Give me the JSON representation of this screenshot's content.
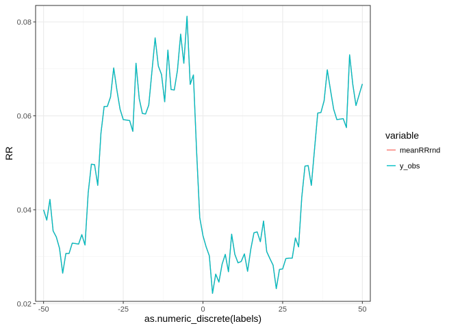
{
  "chart_data": {
    "type": "line",
    "xlabel": "as.numeric_discrete(labels)",
    "ylabel": "RR",
    "xlim": [
      -52.5,
      52.5
    ],
    "ylim": [
      0.0205,
      0.0835
    ],
    "x_ticks": [
      -50,
      -25,
      0,
      25,
      50
    ],
    "x_tick_labels": [
      "-50",
      "-25",
      "0",
      "25",
      "50"
    ],
    "y_ticks": [
      0.02,
      0.04,
      0.06,
      0.08
    ],
    "y_tick_labels": [
      "0.02",
      "0.04",
      "0.06",
      "0.08"
    ],
    "grid": true,
    "legend": {
      "title": "variable",
      "position": "right",
      "entries": [
        {
          "label": "meanRRrnd",
          "color": "#F8766D"
        },
        {
          "label": "y_obs",
          "color": "#00BFC4"
        }
      ]
    },
    "x": [
      -50,
      -49,
      -48,
      -47,
      -46,
      -45,
      -44,
      -43,
      -42,
      -41,
      -40,
      -39,
      -38,
      -37,
      -36,
      -35,
      -34,
      -33,
      -32,
      -31,
      -30,
      -29,
      -28,
      -27,
      -26,
      -25,
      -24,
      -23,
      -22,
      -21,
      -20,
      -19,
      -18,
      -17,
      -16,
      -15,
      -14,
      -13,
      -12,
      -11,
      -10,
      -9,
      -8,
      -7,
      -6,
      -5,
      -4,
      -3,
      -2,
      -1,
      0,
      1,
      2,
      3,
      4,
      5,
      6,
      7,
      8,
      9,
      10,
      11,
      12,
      13,
      14,
      15,
      16,
      17,
      18,
      19,
      20,
      21,
      22,
      23,
      24,
      25,
      26,
      27,
      28,
      29,
      30,
      31,
      32,
      33,
      34,
      35,
      36,
      37,
      38,
      39,
      40,
      41,
      42,
      43,
      44,
      45,
      46,
      47,
      48,
      49,
      50
    ],
    "series": [
      {
        "name": "y_obs",
        "color": "#00BFC4",
        "values": [
          0.04,
          0.0378,
          0.0422,
          0.0355,
          0.0342,
          0.0318,
          0.0265,
          0.0307,
          0.0307,
          0.0329,
          0.0328,
          0.0327,
          0.0347,
          0.0325,
          0.0436,
          0.0497,
          0.0496,
          0.0452,
          0.0563,
          0.062,
          0.062,
          0.064,
          0.0702,
          0.0655,
          0.0614,
          0.0592,
          0.0591,
          0.059,
          0.0567,
          0.0712,
          0.0637,
          0.0605,
          0.0604,
          0.0623,
          0.0695,
          0.0766,
          0.0706,
          0.0688,
          0.063,
          0.074,
          0.0656,
          0.0655,
          0.0697,
          0.0774,
          0.0712,
          0.0812,
          0.0667,
          0.0687,
          0.0525,
          0.0383,
          0.0345,
          0.0321,
          0.0302,
          0.0222,
          0.0263,
          0.0246,
          0.0284,
          0.0305,
          0.0268,
          0.0348,
          0.0305,
          0.0287,
          0.029,
          0.0306,
          0.0269,
          0.0316,
          0.0351,
          0.0353,
          0.0332,
          0.0376,
          0.0311,
          0.0296,
          0.0282,
          0.0232,
          0.0273,
          0.0274,
          0.0296,
          0.0297,
          0.0297,
          0.034,
          0.0321,
          0.0427,
          0.0493,
          0.0494,
          0.0452,
          0.0529,
          0.0606,
          0.0607,
          0.0632,
          0.0698,
          0.0655,
          0.0614,
          0.0592,
          0.0593,
          0.0594,
          0.0575,
          0.073,
          0.0667,
          0.0622,
          0.0645,
          0.0668
        ]
      },
      {
        "name": "meanRRrnd",
        "color": "#F8766D",
        "values": [
          0.04,
          0.0378,
          0.0422,
          0.0355,
          0.0342,
          0.0318,
          0.0265,
          0.0307,
          0.0307,
          0.0329,
          0.0328,
          0.0327,
          0.0347,
          0.0325,
          0.0436,
          0.0497,
          0.0496,
          0.0452,
          0.0563,
          0.062,
          0.062,
          0.064,
          0.0702,
          0.0655,
          0.0614,
          0.0592,
          0.0591,
          0.059,
          0.0567,
          0.0712,
          0.0637,
          0.0605,
          0.0604,
          0.0623,
          0.0695,
          0.0766,
          0.0706,
          0.0688,
          0.063,
          0.074,
          0.0656,
          0.0655,
          0.0697,
          0.0774,
          0.0712,
          0.0812,
          0.0667,
          0.0687,
          0.0525,
          0.0383,
          0.0345,
          0.0321,
          0.0302,
          0.0222,
          0.0263,
          0.0246,
          0.0284,
          0.0305,
          0.0268,
          0.0348,
          0.0305,
          0.0287,
          0.029,
          0.0306,
          0.0269,
          0.0316,
          0.0351,
          0.0353,
          0.0332,
          0.0376,
          0.0311,
          0.0296,
          0.0282,
          0.0232,
          0.0273,
          0.0274,
          0.0296,
          0.0297,
          0.0297,
          0.034,
          0.0321,
          0.0427,
          0.0493,
          0.0494,
          0.0452,
          0.0529,
          0.0606,
          0.0607,
          0.0632,
          0.0698,
          0.0655,
          0.0614,
          0.0592,
          0.0593,
          0.0594,
          0.0575,
          0.073,
          0.0667,
          0.0622,
          0.0645,
          0.0668
        ]
      }
    ]
  }
}
